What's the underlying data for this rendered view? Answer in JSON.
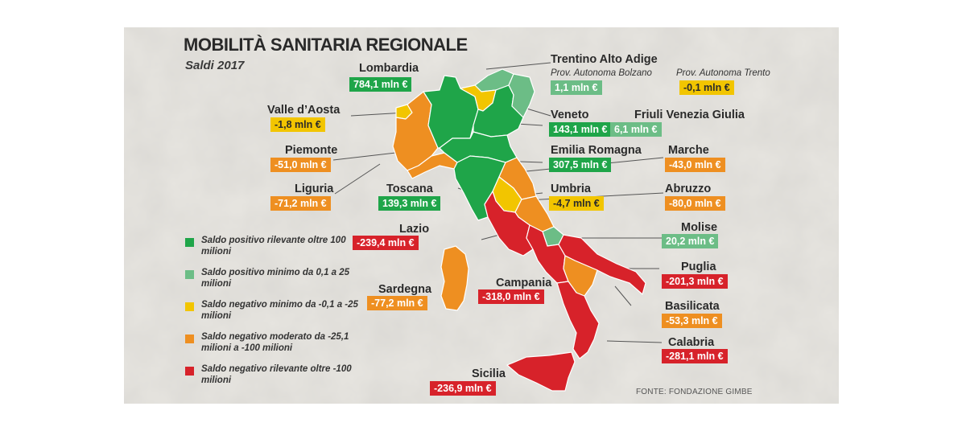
{
  "title": "MOBILITÀ SANITARIA REGIONALE",
  "subtitle": "Saldi 2017",
  "source": "FONTE: FONDAZIONE GIMBE",
  "colors": {
    "positive_high": "#1fa549",
    "positive_low": "#6cbd86",
    "negative_low": "#f2c500",
    "negative_mid": "#ee8f21",
    "negative_high": "#d7222a"
  },
  "legend": [
    {
      "text": "Saldo positivo rilevante oltre 100 milioni",
      "color": "#1fa549"
    },
    {
      "text": "Saldo positivo minimo da 0,1 a 25 milioni",
      "color": "#6cbd86"
    },
    {
      "text": "Saldo negativo minimo da -0,1 a -25 milioni",
      "color": "#f2c500"
    },
    {
      "text": "Saldo negativo moderato da -25,1 milioni a -100 milioni",
      "color": "#ee8f21"
    },
    {
      "text": "Saldo negativo rilevante oltre -100 milioni",
      "color": "#d7222a"
    }
  ],
  "regions": {
    "lombardia": {
      "name": "Lombardia",
      "value": "784,1 mln €",
      "color": "#1fa549"
    },
    "trentino": {
      "name": "Trentino Alto Adige"
    },
    "bolzano": {
      "name": "Prov. Autonoma Bolzano",
      "value": "1,1 mln €",
      "color": "#6cbd86"
    },
    "trento": {
      "name": "Prov. Autonoma Trento",
      "value": "-0,1 mln €",
      "color": "#f2c500"
    },
    "valle_aosta": {
      "name": "Valle d’Aosta",
      "value": "-1,8 mln €",
      "color": "#f2c500"
    },
    "veneto": {
      "name": "Veneto",
      "value": "143,1 mln €",
      "color": "#1fa549"
    },
    "friuli": {
      "name": "Friuli Venezia Giulia",
      "value": "6,1 mln €",
      "color": "#6cbd86"
    },
    "piemonte": {
      "name": "Piemonte",
      "value": "-51,0 mln €",
      "color": "#ee8f21"
    },
    "emilia": {
      "name": "Emilia Romagna",
      "value": "307,5 mln €",
      "color": "#1fa549"
    },
    "marche": {
      "name": "Marche",
      "value": "-43,0 mln €",
      "color": "#ee8f21"
    },
    "liguria": {
      "name": "Liguria",
      "value": "-71,2 mln €",
      "color": "#ee8f21"
    },
    "toscana": {
      "name": "Toscana",
      "value": "139,3 mln €",
      "color": "#1fa549"
    },
    "umbria": {
      "name": "Umbria",
      "value": "-4,7 mln €",
      "color": "#f2c500"
    },
    "abruzzo": {
      "name": "Abruzzo",
      "value": "-80,0 mln €",
      "color": "#ee8f21"
    },
    "lazio": {
      "name": "Lazio",
      "value": "-239,4 mln €",
      "color": "#d7222a"
    },
    "molise": {
      "name": "Molise",
      "value": "20,2 mln €",
      "color": "#6cbd86"
    },
    "puglia": {
      "name": "Puglia",
      "value": "-201,3 mln €",
      "color": "#d7222a"
    },
    "sardegna": {
      "name": "Sardegna",
      "value": "-77,2 mln €",
      "color": "#ee8f21"
    },
    "campania": {
      "name": "Campania",
      "value": "-318,0 mln €",
      "color": "#d7222a"
    },
    "basilicata": {
      "name": "Basilicata",
      "value": "-53,3 mln €",
      "color": "#ee8f21"
    },
    "calabria": {
      "name": "Calabria",
      "value": "-281,1 mln €",
      "color": "#d7222a"
    },
    "sicilia": {
      "name": "Sicilia",
      "value": "-236,9 mln €",
      "color": "#d7222a"
    }
  }
}
